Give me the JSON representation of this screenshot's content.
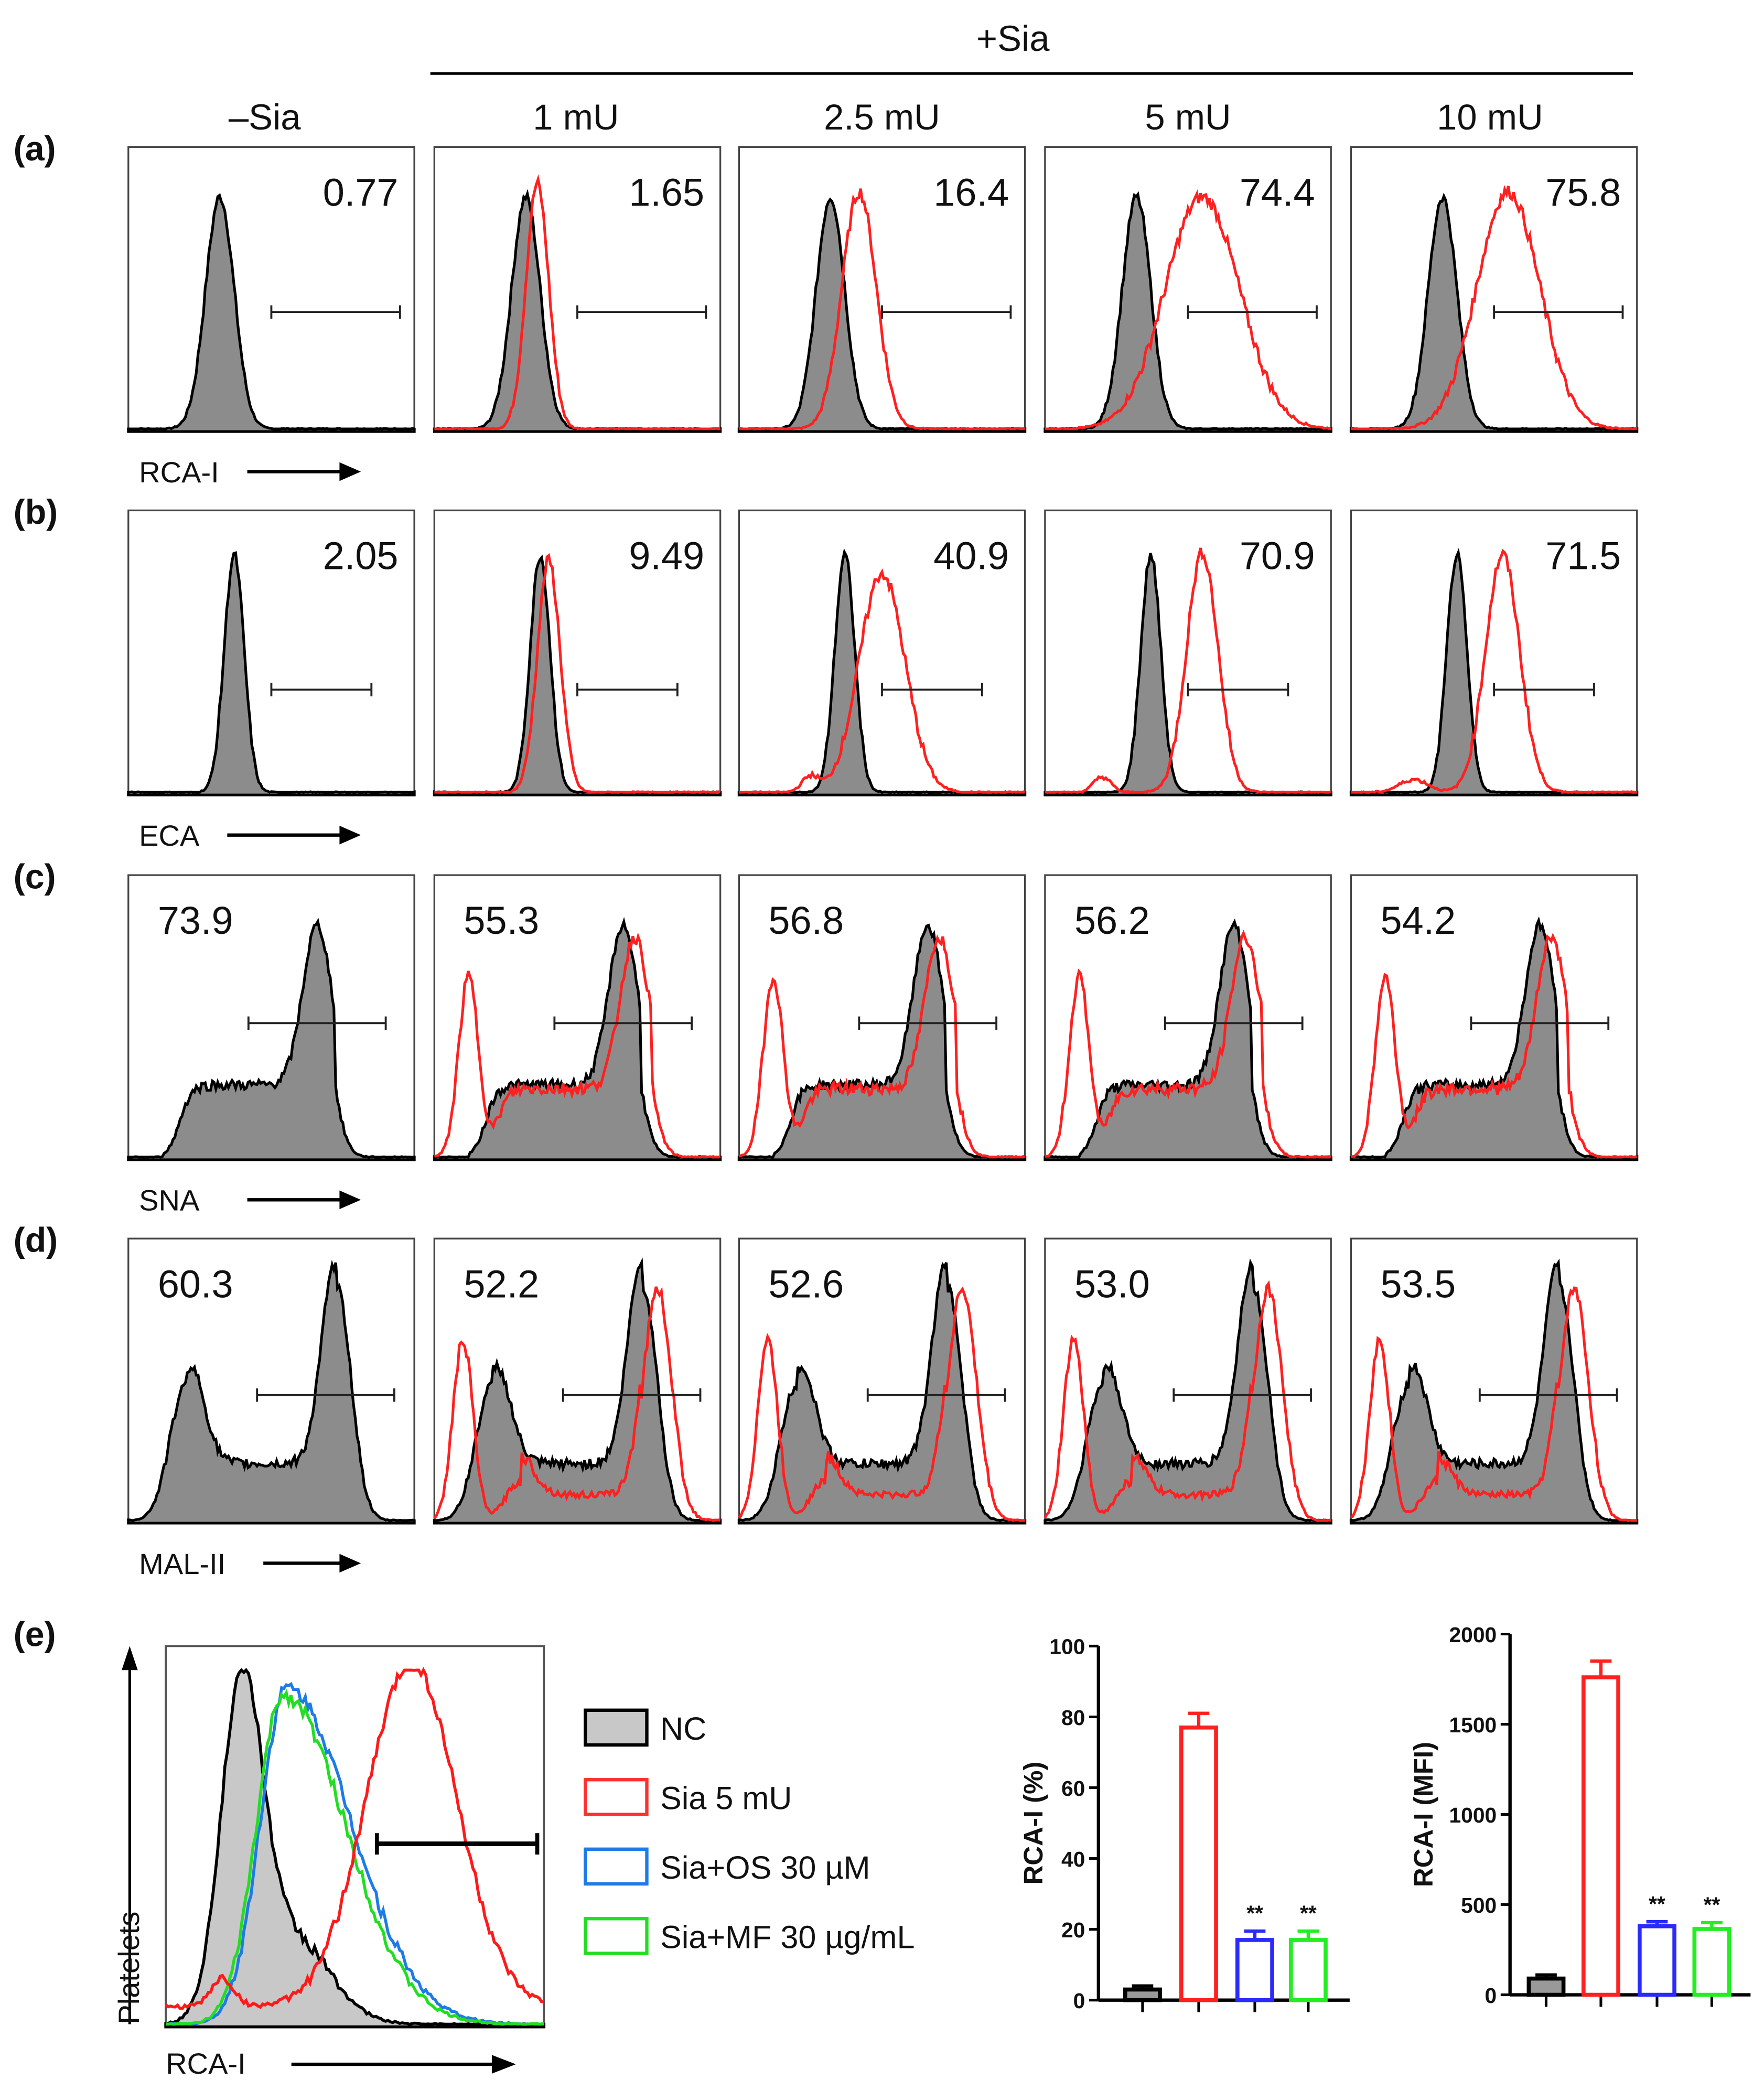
{
  "header": {
    "plus_sia": "+Sia",
    "minus_sia": "–Sia",
    "doses": [
      "1 mU",
      "2.5 mU",
      "5 mU",
      "10 mU"
    ]
  },
  "rows": [
    {
      "label": "(a)",
      "lectin": "RCA-I",
      "gate_pct": [
        "0.77",
        "1.65",
        "16.4",
        "74.4",
        "75.8"
      ]
    },
    {
      "label": "(b)",
      "lectin": "ECA",
      "gate_pct": [
        "2.05",
        "9.49",
        "40.9",
        "70.9",
        "71.5"
      ]
    },
    {
      "label": "(c)",
      "lectin": "SNA",
      "gate_pct": [
        "73.9",
        "55.3",
        "56.8",
        "56.2",
        "54.2"
      ]
    },
    {
      "label": "(d)",
      "lectin": "MAL-II",
      "gate_pct": [
        "60.3",
        "52.2",
        "52.6",
        "53.0",
        "53.5"
      ]
    }
  ],
  "panel_e": {
    "label": "(e)",
    "xlabel": "RCA-I",
    "ylabel": "Platelets",
    "legend": [
      {
        "name": "NC",
        "color": "#000000",
        "fill": "#c8c8c8"
      },
      {
        "name": "Sia 5 mU",
        "color": "#ff3030"
      },
      {
        "name": "Sia+OS 30 µM",
        "color": "#1e7be6"
      },
      {
        "name": "Sia+MF 30 µg/mL",
        "color": "#22dd22"
      }
    ]
  },
  "colors": {
    "nc": "#000000",
    "sia": "#ff2020",
    "os": "#2a2aff",
    "mf": "#22ee22",
    "gray": "#8c8c8c"
  },
  "chart_data": [
    {
      "type": "bar",
      "title": "",
      "ylabel": "RCA-I (%)",
      "ylim": [
        0,
        100
      ],
      "yticks": [
        "0",
        "20",
        "40",
        "60",
        "80",
        "100"
      ],
      "categories": [
        "NC",
        "Sia 5 mU",
        "Sia+OS 30 µM",
        "Sia+MF 30 µg/mL"
      ],
      "values": [
        3,
        77,
        17,
        17
      ],
      "errors": [
        1,
        4,
        2.5,
        2.5
      ],
      "annotations": [
        "",
        "",
        "**",
        "**"
      ]
    },
    {
      "type": "bar",
      "title": "",
      "ylabel": "RCA-I (MFI)",
      "ylim": [
        0,
        2000
      ],
      "yticks": [
        "0",
        "500",
        "1000",
        "1500",
        "2000"
      ],
      "categories": [
        "NC",
        "Sia 5 mU",
        "Sia+OS 30 µM",
        "Sia+MF 30 µg/mL"
      ],
      "values": [
        90,
        1760,
        380,
        365
      ],
      "errors": [
        20,
        90,
        25,
        35
      ],
      "annotations": [
        "",
        "",
        "**",
        "**"
      ]
    }
  ]
}
